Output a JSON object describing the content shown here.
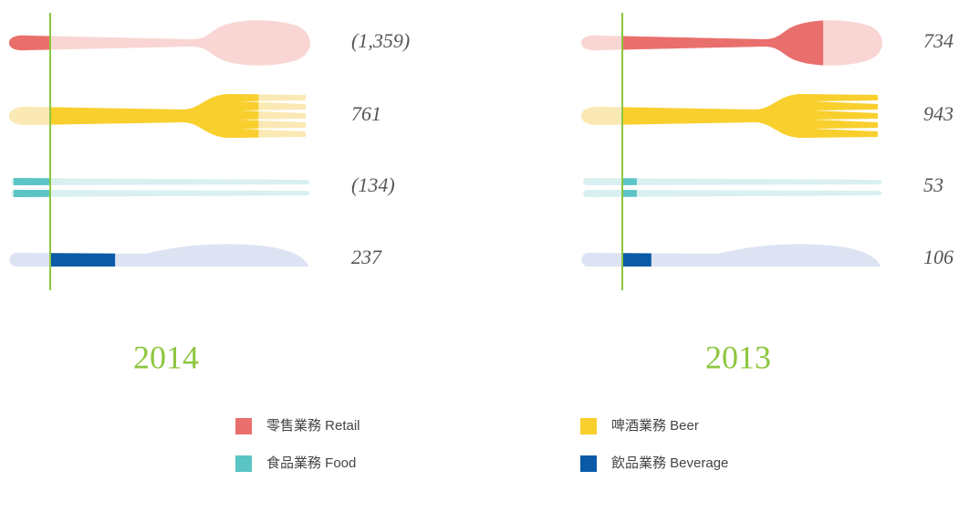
{
  "chart_data": [
    {
      "type": "bar",
      "title": "2014",
      "values": [
        -1359,
        761,
        -134,
        237
      ],
      "value_labels": [
        "(1,359)",
        "761",
        "(134)",
        "237"
      ],
      "colors": [
        "#e96f6c",
        "#f8cf2d",
        "#5bc4c5",
        "#0a5aa7"
      ]
    },
    {
      "type": "bar",
      "title": "2013",
      "values": [
        734,
        943,
        53,
        106
      ],
      "value_labels": [
        "734",
        "943",
        "53",
        "106"
      ],
      "colors": [
        "#e96f6c",
        "#f8cf2d",
        "#5bc4c5",
        "#0a5aa7"
      ]
    }
  ],
  "legend": [
    {
      "name": "零售業務 Retail",
      "color": "#e96f6c"
    },
    {
      "name": "啤酒業務 Beer",
      "color": "#f8cf2d"
    },
    {
      "name": "食品業務 Food",
      "color": "#5bc4c5"
    },
    {
      "name": "飲品業務 Beverage",
      "color": "#0a5aa7"
    }
  ]
}
